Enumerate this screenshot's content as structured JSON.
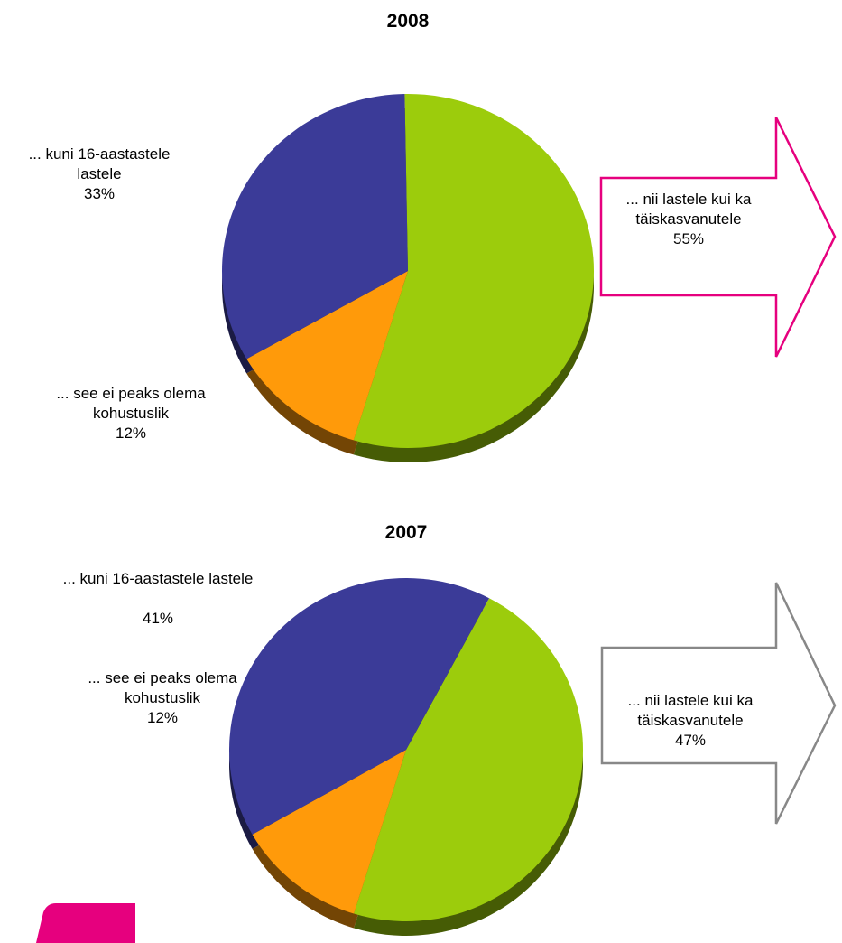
{
  "chart_data": [
    {
      "type": "pie",
      "title": "2008",
      "categories": [
        "... nii lastele kui ka täiskasvanutele",
        "... see ei peaks olema kohustuslik",
        "... kuni 16-aastastele lastele"
      ],
      "values": [
        55,
        12,
        33
      ],
      "value_labels": [
        "55%",
        "12%",
        "33%"
      ],
      "colors": [
        "#9ccc0c",
        "#ff9a0a",
        "#3b3b98"
      ],
      "arrow_color": "#e6007e"
    },
    {
      "type": "pie",
      "title": "2007",
      "categories": [
        "... nii lastele kui ka täiskasvanutele",
        "... see ei peaks olema kohustuslik",
        "... kuni 16-aastastele lastele"
      ],
      "values": [
        47,
        12,
        41
      ],
      "value_labels": [
        "47%",
        "12%",
        "41%"
      ],
      "colors": [
        "#9ccc0c",
        "#ff9a0a",
        "#3b3b98"
      ],
      "arrow_color": "#888888"
    }
  ]
}
